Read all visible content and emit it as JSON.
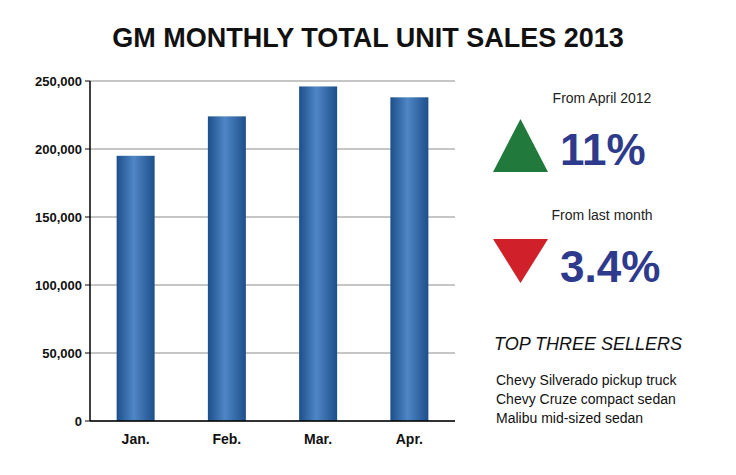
{
  "chart_data": {
    "type": "bar",
    "title": "GM MONTHLY TOTAL UNIT SALES 2013",
    "categories": [
      "Jan.",
      "Feb.",
      "Mar.",
      "Apr."
    ],
    "values": [
      195000,
      224000,
      246000,
      238000
    ],
    "color": "#1d4f8a",
    "ylim": [
      0,
      250000
    ],
    "yticks": [
      0,
      {
        "value": 50000,
        "label": "50,000"
      },
      {
        "value": 100000,
        "label": "100,000"
      },
      {
        "value": 150000,
        "label": "150,000"
      },
      {
        "value": 200000,
        "label": "200,000"
      },
      {
        "value": 250000,
        "label": "250,000"
      }
    ],
    "grid": true,
    "annotations": [
      {
        "caption": "From April 2012",
        "text": "11%",
        "color": "#217a3c",
        "marker": "triangle-up"
      },
      {
        "caption": "From last month",
        "text": "3.4%",
        "color": "#d0202a",
        "marker": "triangle-down"
      }
    ],
    "top_sellers": {
      "title": "TOP THREE SELLERS",
      "items": [
        "Chevy Silverado pickup truck",
        "Chevy Cruze compact sedan",
        "Malibu mid-sized sedan"
      ]
    }
  }
}
